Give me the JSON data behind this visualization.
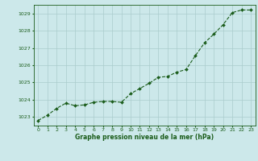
{
  "x": [
    0,
    1,
    2,
    3,
    4,
    5,
    6,
    7,
    8,
    9,
    10,
    11,
    12,
    13,
    14,
    15,
    16,
    17,
    18,
    19,
    20,
    21,
    22,
    23
  ],
  "y": [
    1022.8,
    1023.1,
    1023.5,
    1023.8,
    1023.65,
    1023.7,
    1023.85,
    1023.9,
    1023.9,
    1023.85,
    1024.35,
    1024.65,
    1024.95,
    1025.3,
    1025.35,
    1025.6,
    1025.75,
    1026.55,
    1027.3,
    1027.8,
    1028.35,
    1029.05,
    1029.2,
    1029.2
  ],
  "line_color": "#1a5c1a",
  "marker_color": "#1a5c1a",
  "bg_color": "#cce8ea",
  "grid_color": "#aacccc",
  "title": "Graphe pression niveau de la mer (hPa)",
  "title_color": "#1a5c1a",
  "ylim": [
    1022.5,
    1029.5
  ],
  "yticks": [
    1023,
    1024,
    1025,
    1026,
    1027,
    1028,
    1029
  ],
  "xticks": [
    0,
    1,
    2,
    3,
    4,
    5,
    6,
    7,
    8,
    9,
    10,
    11,
    12,
    13,
    14,
    15,
    16,
    17,
    18,
    19,
    20,
    21,
    22,
    23
  ],
  "xlim": [
    -0.5,
    23.5
  ],
  "tick_color": "#1a5c1a",
  "spine_color": "#1a5c1a"
}
